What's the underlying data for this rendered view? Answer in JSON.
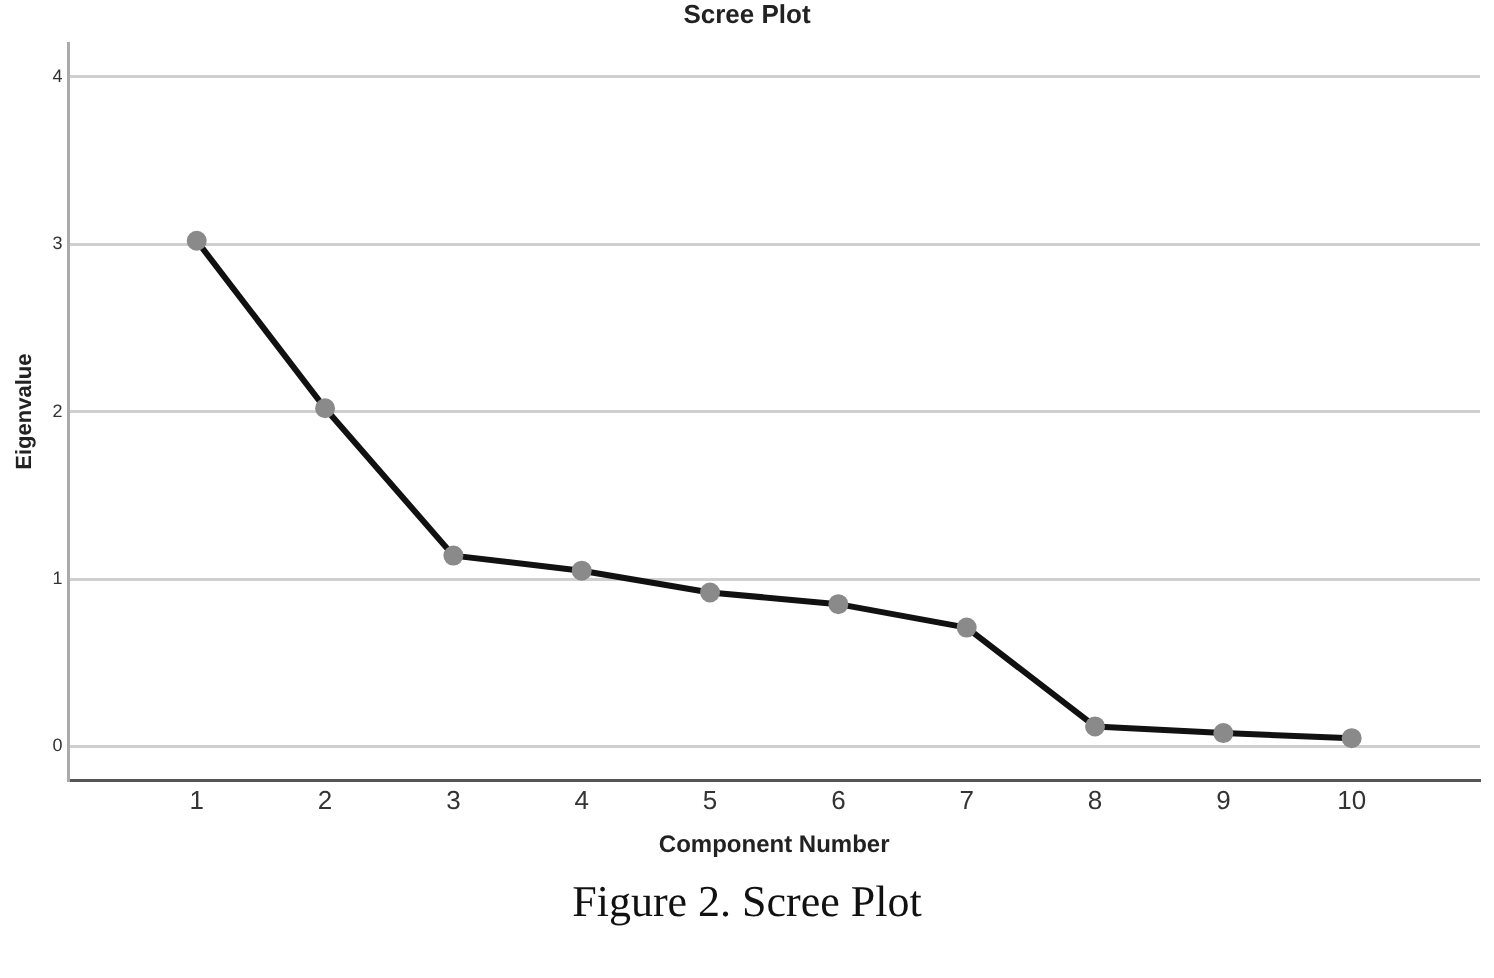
{
  "chart_data": {
    "type": "line",
    "title": "Scree Plot",
    "xlabel": "Component Number",
    "ylabel": "Eigenvalue",
    "annotations": [
      "Figure 2. Scree Plot"
    ],
    "x": [
      1,
      2,
      3,
      4,
      5,
      6,
      7,
      8,
      9,
      10
    ],
    "series": [
      {
        "color": "#111111",
        "values": [
          3.02,
          2.02,
          1.14,
          1.05,
          0.92,
          0.85,
          0.71,
          0.12,
          0.08,
          0.05
        ]
      }
    ],
    "xlim": [
      0,
      11
    ],
    "xticks": [
      1,
      2,
      3,
      4,
      5,
      6,
      7,
      8,
      9,
      10
    ],
    "ylim": [
      -0.2,
      4.2
    ],
    "yticks": [
      0,
      1,
      2,
      3,
      4
    ],
    "grid": "y",
    "marker": "circle",
    "line_style": "solid",
    "legend": false
  }
}
